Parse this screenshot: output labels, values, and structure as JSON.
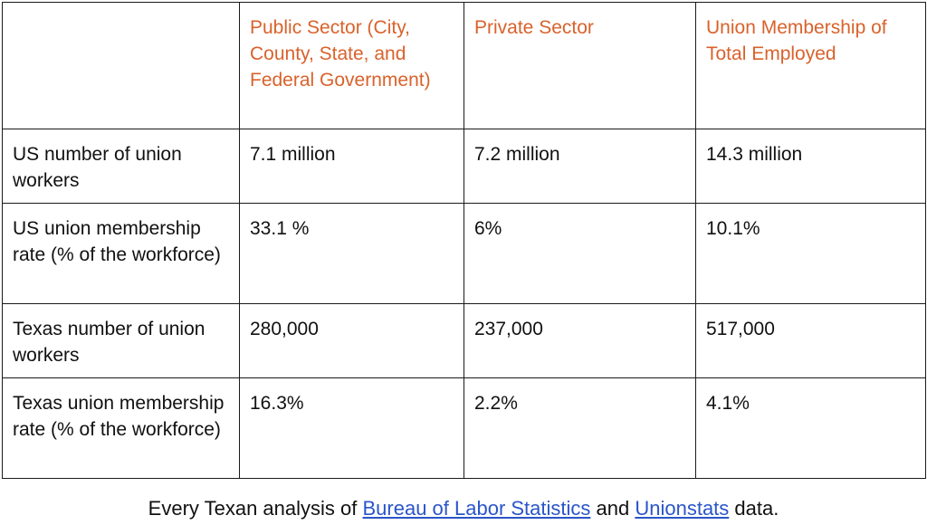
{
  "colors": {
    "header_text": "#d9622b",
    "link": "#2a55c9",
    "border": "#1a1a1a"
  },
  "table": {
    "columns": [
      "",
      "Public Sector (City, County, State, and Federal Government)",
      "Private Sector",
      "Union Membership of Total Employed"
    ],
    "rows": [
      {
        "label": "US number of union workers",
        "cells": [
          "7.1 million",
          "7.2 million",
          "14.3 million"
        ]
      },
      {
        "label": "US union membership rate (% of the workforce)",
        "cells": [
          "33.1 %",
          "6%",
          "10.1%"
        ]
      },
      {
        "label": "Texas number of union workers",
        "cells": [
          "280,000",
          "237,000",
          "517,000"
        ]
      },
      {
        "label": "Texas union membership rate (% of the workforce)",
        "cells": [
          "16.3%",
          "2.2%",
          "4.1%"
        ]
      }
    ]
  },
  "caption": {
    "prefix": "Every Texan analysis of ",
    "link1": "Bureau of Labor Statistics",
    "middle": " and ",
    "link2": "Unionstats",
    "suffix": " data."
  }
}
